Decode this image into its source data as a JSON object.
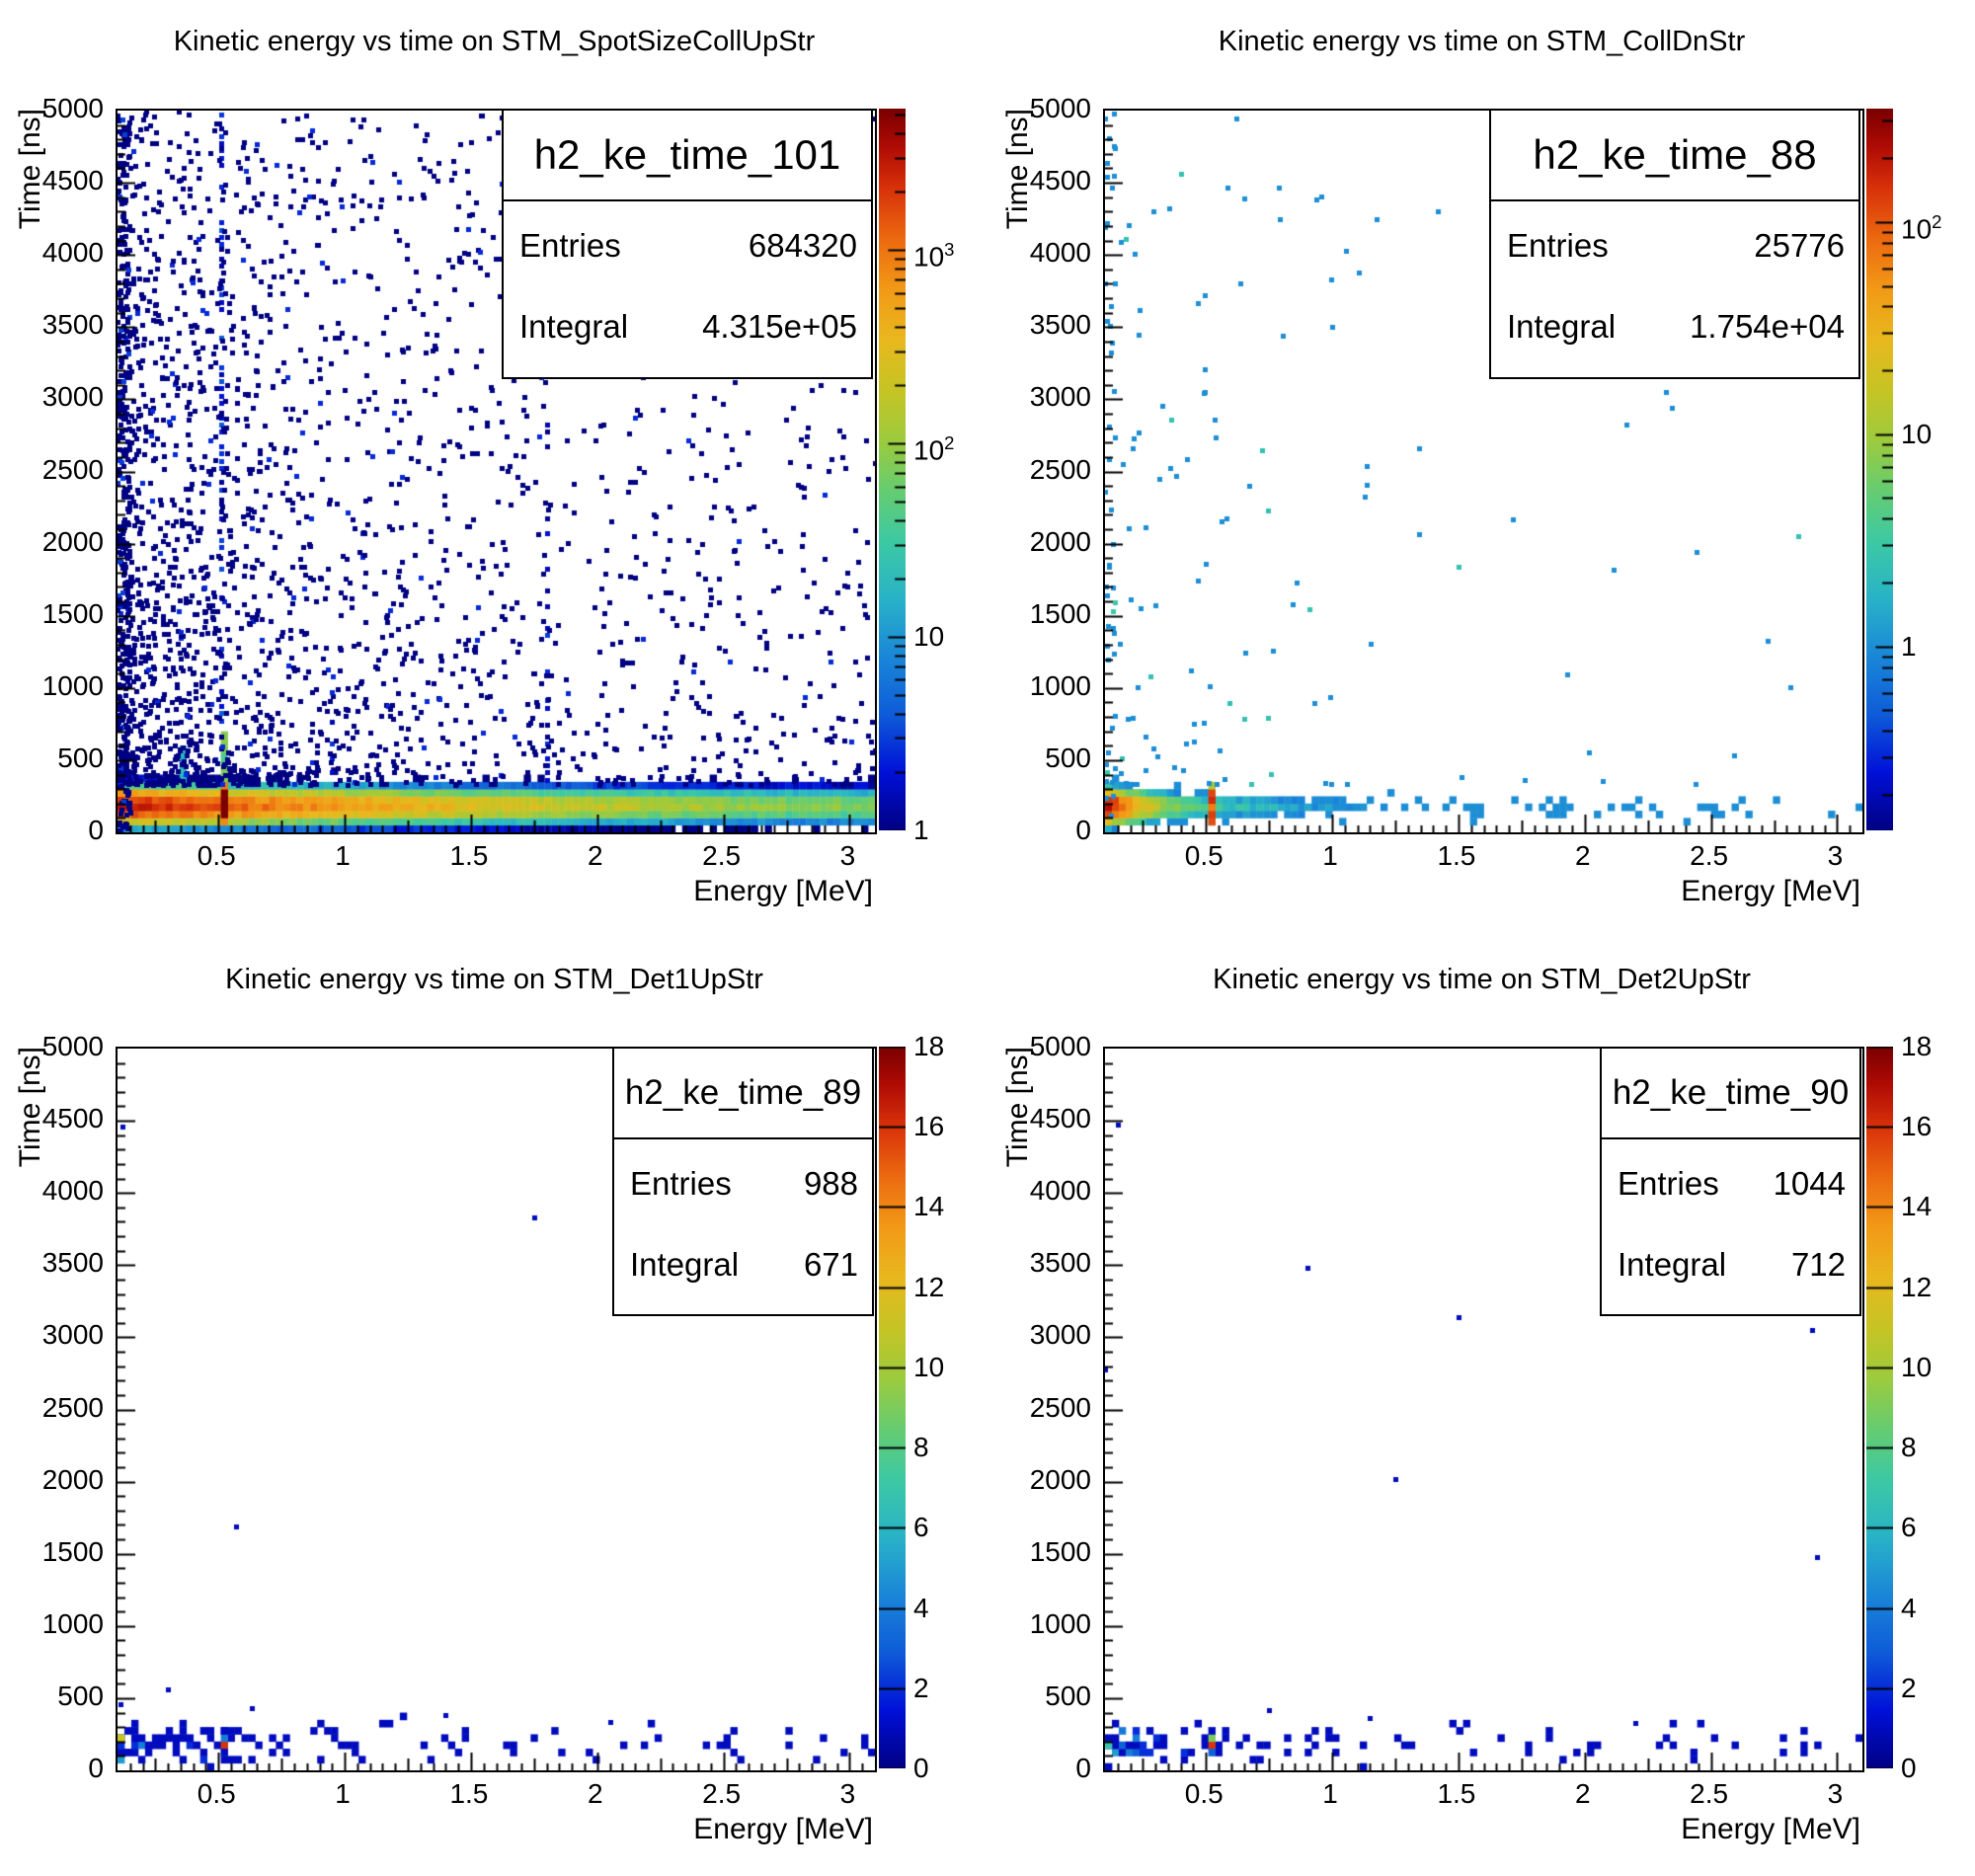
{
  "page": {
    "background": "#ffffff"
  },
  "stats_labels": {
    "entries": "Entries",
    "integral": "Integral"
  },
  "palette": {
    "name": "root-rainbow",
    "stops": [
      [
        0.0,
        "#000082"
      ],
      [
        0.08,
        "#0010d8"
      ],
      [
        0.16,
        "#0e5bd8"
      ],
      [
        0.24,
        "#1a86d8"
      ],
      [
        0.32,
        "#28b2c8"
      ],
      [
        0.4,
        "#3cc9a4"
      ],
      [
        0.47,
        "#65cc72"
      ],
      [
        0.54,
        "#9ccb3e"
      ],
      [
        0.61,
        "#c6c424"
      ],
      [
        0.68,
        "#e8b81e"
      ],
      [
        0.75,
        "#f29a16"
      ],
      [
        0.82,
        "#ec6a10"
      ],
      [
        0.89,
        "#d8320a"
      ],
      [
        0.95,
        "#ae0a04"
      ],
      [
        1.0,
        "#7a0000"
      ]
    ]
  },
  "chart_data": [
    {
      "type": "heatmap",
      "title": "Kinetic energy vs time on STM_SpotSizeCollUpStr",
      "hist_name": "h2_ke_time_101",
      "entries": "684320",
      "integral": "4.315e+05",
      "xlabel": "Energy [MeV]",
      "ylabel": "Time [ns]",
      "axes": {
        "xlim": [
          0.1,
          3.1
        ],
        "ylim": [
          0,
          5000
        ],
        "xticks": [
          0.5,
          1,
          1.5,
          2,
          2.5,
          3
        ],
        "yticks": [
          0,
          500,
          1000,
          1500,
          2000,
          2500,
          3000,
          3500,
          4000,
          4500,
          5000
        ],
        "x_minor": 0.05,
        "y_minor": 100
      },
      "zbar": {
        "scale": "log",
        "zmin": 1,
        "zmax": 5370,
        "ticks": [
          {
            "text": "10",
            "sup": "3",
            "v": 1000
          },
          {
            "text": "10",
            "sup": "2",
            "v": 100
          },
          {
            "text": "10",
            "v": 10
          },
          {
            "text": "1",
            "v": 1
          }
        ]
      },
      "distribution_summary": "Dense prompt band at t=50-330 ns over full energy range; hottest (about 2500 counts/bin) below 0.9 MeV; 0.511 MeV annihilation line visible up to 5000 ns; diffuse single-count background everywhere, denser at low energy.",
      "render": {
        "kind": "log",
        "seed": 101,
        "nx": 110,
        "ny": 100,
        "zmin": 1,
        "zmax": 5370,
        "band": {
          "t0": 185,
          "sigma": 50,
          "terms": [
            [
              2600,
              0.5
            ],
            [
              260,
              1.1
            ],
            [
              90,
              3.5
            ]
          ],
          "const": 18,
          "tmaxBand": 700
        },
        "vlines": [
          {
            "e": 0.511,
            "segs": [
              {
                "t": [
                  30,
                  340
                ],
                "boost": 14
              },
              {
                "t": [
                  340,
                  700
                ],
                "cmin": 20,
                "cmax": 90,
                "p": 1
              },
              {
                "t": [
                  700,
                  5000
                ],
                "cmin": 1,
                "cmax": 4,
                "p": 0.55,
                "size": 5
              }
            ]
          },
          {
            "e": 0.35,
            "segs": [
              {
                "t": [
                  340,
                  650
                ],
                "cmin": 5,
                "cmax": 25,
                "p": 0.8
              }
            ]
          },
          {
            "e": 0.95,
            "segs": [
              {
                "t": [
                  340,
                  820
                ],
                "cmin": 1,
                "cmax": 3,
                "p": 0.35,
                "size": 5
              }
            ]
          },
          {
            "e": 1.8,
            "segs": [
              {
                "t": [
                  340,
                  1600
                ],
                "cmin": 1,
                "cmax": 3,
                "p": 0.3,
                "size": 5
              },
              {
                "t": [
                  1600,
                  3100
                ],
                "cmin": 1,
                "cmax": 2,
                "p": 0.12,
                "size": 5
              }
            ]
          }
        ],
        "scatter": {
          "n": 2400,
          "eTau": 0.5,
          "eUniformP": 0.45,
          "tMin": 330,
          "tPow": 1.65,
          "size": 5
        },
        "leftColumn": {
          "n": 300,
          "eWidth": 0.05,
          "size": 5
        }
      }
    },
    {
      "type": "heatmap",
      "title": "Kinetic energy vs time on STM_CollDnStr",
      "hist_name": "h2_ke_time_88",
      "entries": "25776",
      "integral": "1.754e+04",
      "xlabel": "Energy [MeV]",
      "ylabel": "Time [ns]",
      "axes": {
        "xlim": [
          0.1,
          3.1
        ],
        "ylim": [
          0,
          5000
        ],
        "xticks": [
          0.5,
          1,
          1.5,
          2,
          2.5,
          3
        ],
        "yticks": [
          0,
          500,
          1000,
          1500,
          2000,
          2500,
          3000,
          3500,
          4000,
          4500,
          5000
        ],
        "x_minor": 0.05,
        "y_minor": 100
      },
      "zbar": {
        "scale": "log",
        "zmin": 0.136,
        "zmax": 342,
        "ticks": [
          {
            "text": "10",
            "sup": "2",
            "v": 100
          },
          {
            "text": "10",
            "v": 10
          },
          {
            "text": "1",
            "v": 1
          }
        ]
      },
      "distribution_summary": "Compact hot spot (about 300 counts/bin) at 0.1-0.3 MeV, t=100-250 ns; sparse blue band to 3.1 MeV; orange 0.511 MeV line inside band; very sparse isolated hits above.",
      "render": {
        "kind": "log",
        "seed": 88,
        "nx": 110,
        "ny": 100,
        "zmin": 0.136,
        "zmax": 342,
        "band": {
          "t0": 180,
          "sigma": 48,
          "terms": [
            [
              300,
              0.055
            ],
            [
              8,
              0.28
            ],
            [
              2.5,
              0.5
            ]
          ],
          "const": 0.35,
          "tmaxBand": 600
        },
        "vlines": [
          {
            "e": 0.511,
            "segs": [
              {
                "t": [
                  60,
                  300
                ],
                "cmin": 40,
                "cmax": 160,
                "p": 1
              },
              {
                "t": [
                  300,
                  350
                ],
                "cmin": 8,
                "cmax": 14,
                "p": 1
              }
            ]
          }
        ],
        "scatter": {
          "n": 130,
          "eTau": 0.55,
          "eUniformP": 0.3,
          "tMin": 330,
          "tPow": 1.7,
          "size": 5
        },
        "leftColumn": {
          "n": 45,
          "eWidth": 0.04,
          "size": 5
        }
      }
    },
    {
      "type": "heatmap",
      "title": "Kinetic energy vs time on STM_Det1UpStr",
      "hist_name": "h2_ke_time_89",
      "entries": "988",
      "integral": "671",
      "xlabel": "Energy [MeV]",
      "ylabel": "Time [ns]",
      "axes": {
        "xlim": [
          0.1,
          3.1
        ],
        "ylim": [
          0,
          5000
        ],
        "xticks": [
          0.5,
          1,
          1.5,
          2,
          2.5,
          3
        ],
        "yticks": [
          0,
          500,
          1000,
          1500,
          2000,
          2500,
          3000,
          3500,
          4000,
          4500,
          5000
        ],
        "x_minor": 0.05,
        "y_minor": 100
      },
      "zbar": {
        "scale": "linear",
        "zmin": 0,
        "zmax": 18,
        "tickStep": 2
      },
      "distribution_summary": "Sparse 1-3 count band at t=80-320 ns, denser below 0.6 MeV; red bin (16) at 0.511 MeV; yellow-green bin (11) at left edge; a few isolated hits up to 4500 ns.",
      "render": {
        "kind": "linear",
        "seed": 89,
        "nx": 110,
        "ny": 100,
        "zmax": 18,
        "band": {
          "t0": 190,
          "sigma": 75,
          "pA": 0.85,
          "pTau": 0.35,
          "pFloor": 0.13,
          "kA": 7,
          "kTau": 0.22,
          "tmaxBand": 420
        },
        "vlines": [
          {
            "e": 0.511,
            "cells": [
              [
                190,
                16
              ],
              [
                140,
                6
              ],
              [
                240,
                4
              ],
              [
                290,
                1
              ],
              [
                110,
                1
              ]
            ]
          }
        ],
        "edgeCell": {
          "e": 0.104,
          "t": 200,
          "c": 11
        },
        "dots": [
          [
            1.75,
            3830
          ],
          [
            0.57,
            1690
          ],
          [
            0.12,
            4460
          ],
          [
            0.63,
            430
          ],
          [
            0.3,
            560
          ],
          [
            2.05,
            335
          ],
          [
            1.4,
            380
          ],
          [
            0.11,
            460
          ]
        ],
        "dotSize": 5
      }
    },
    {
      "type": "heatmap",
      "title": "Kinetic energy vs time on STM_Det2UpStr",
      "hist_name": "h2_ke_time_90",
      "entries": "1044",
      "integral": "712",
      "xlabel": "Energy [MeV]",
      "ylabel": "Time [ns]",
      "axes": {
        "xlim": [
          0.1,
          3.1
        ],
        "ylim": [
          0,
          5000
        ],
        "xticks": [
          0.5,
          1,
          1.5,
          2,
          2.5,
          3
        ],
        "yticks": [
          0,
          500,
          1000,
          1500,
          2000,
          2500,
          3000,
          3500,
          4000,
          4500,
          5000
        ],
        "x_minor": 0.05,
        "y_minor": 100
      },
      "zbar": {
        "scale": "linear",
        "zmin": 0,
        "zmax": 18,
        "tickStep": 2
      },
      "distribution_summary": "Sparse 1-3 count band at t=80-320 ns, denser below 0.6 MeV; red bin (16) at 0.511 MeV; scattered single hits up to 4500 ns.",
      "render": {
        "kind": "linear",
        "seed": 90,
        "nx": 110,
        "ny": 100,
        "zmax": 18,
        "band": {
          "t0": 190,
          "sigma": 75,
          "pA": 0.9,
          "pTau": 0.33,
          "pFloor": 0.14,
          "kA": 7,
          "kTau": 0.22,
          "tmaxBand": 420
        },
        "vlines": [
          {
            "e": 0.511,
            "cells": [
              [
                180,
                16
              ],
              [
                230,
                9
              ],
              [
                140,
                3
              ],
              [
                280,
                1
              ]
            ]
          }
        ],
        "edgeCell": {
          "e": 0.104,
          "t": 190,
          "c": 7
        },
        "dots": [
          [
            0.9,
            3480
          ],
          [
            1.5,
            3140
          ],
          [
            2.9,
            3050
          ],
          [
            1.25,
            2020
          ],
          [
            0.1,
            2780
          ],
          [
            0.15,
            4470
          ],
          [
            2.92,
            1480
          ],
          [
            1.15,
            365
          ],
          [
            2.2,
            330
          ],
          [
            0.75,
            420
          ]
        ],
        "dotSize": 5
      }
    }
  ]
}
